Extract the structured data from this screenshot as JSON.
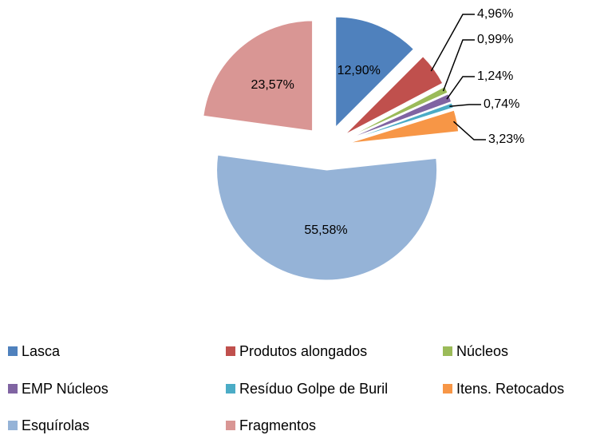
{
  "chart_data": {
    "type": "pie",
    "categories": [
      "Lasca",
      "Produtos alongados",
      "Núcleos",
      "EMP Núcleos",
      "Resíduo Golpe de Buril",
      "Itens. Retocados",
      "Esquírolas",
      "Fragmentos"
    ],
    "values": [
      12.9,
      4.96,
      0.99,
      1.24,
      0.74,
      3.23,
      55.58,
      23.57
    ],
    "value_labels": [
      "12,90%",
      "4,96%",
      "0,99%",
      "1,24%",
      "0,74%",
      "3,23%",
      "55,58%",
      "23,57%"
    ],
    "colors": [
      "#4f81bd",
      "#c0504d",
      "#9bbb59",
      "#8064a2",
      "#4bacc6",
      "#f79646",
      "#95b3d7",
      "#d99694"
    ],
    "legend": "bottom"
  }
}
